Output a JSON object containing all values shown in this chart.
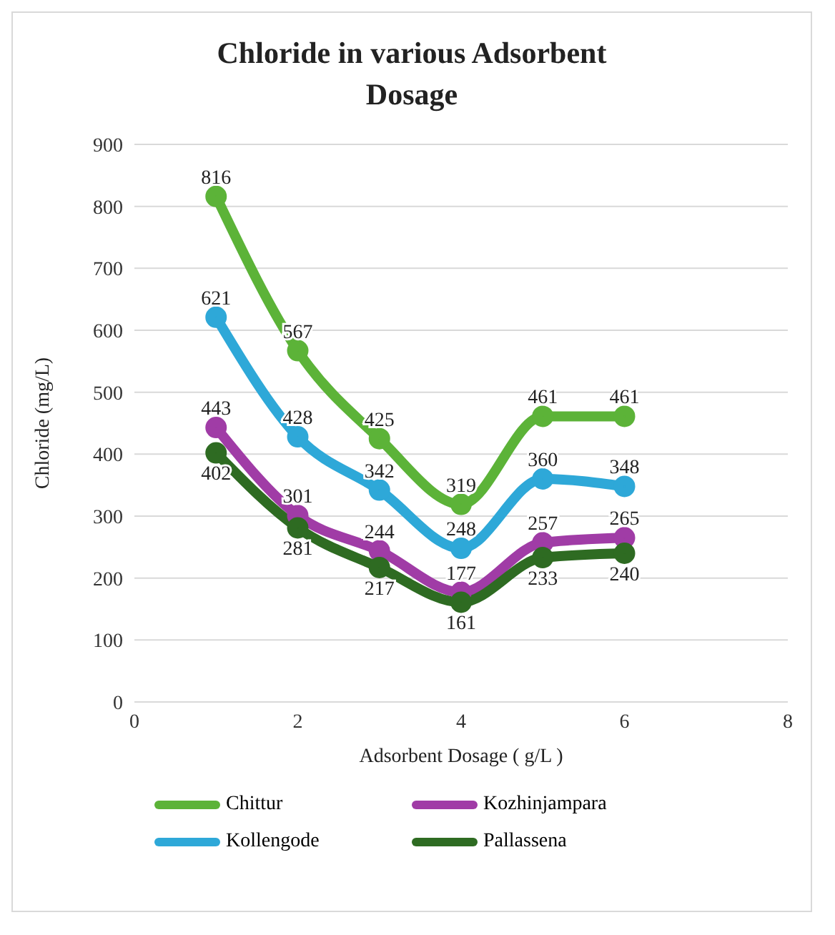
{
  "chart_data": {
    "type": "line",
    "title": "Chloride in various Adsorbent Dosage",
    "xlabel": "Adsorbent Dosage ( g/L )",
    "ylabel": "Chloride (mg/L)",
    "x": [
      1,
      2,
      3,
      4,
      5,
      6
    ],
    "series": [
      {
        "name": "Chittur",
        "color": "#5cb338",
        "values": [
          816,
          567,
          425,
          319,
          461,
          461
        ]
      },
      {
        "name": "Kozhinjampara",
        "color": "#a03ca6",
        "values": [
          443,
          301,
          244,
          177,
          257,
          265
        ]
      },
      {
        "name": "Kollengode",
        "color": "#2ea8d8",
        "values": [
          621,
          428,
          342,
          248,
          360,
          348
        ]
      },
      {
        "name": "Pallassena",
        "color": "#2e6b22",
        "values": [
          402,
          281,
          217,
          161,
          233,
          240
        ]
      }
    ],
    "xlim": [
      0,
      8
    ],
    "xticks": [
      0,
      2,
      4,
      6,
      8
    ],
    "ylim": [
      0,
      900
    ],
    "yticks": [
      0,
      100,
      200,
      300,
      400,
      500,
      600,
      700,
      800,
      900
    ],
    "grid": "y",
    "legend": "bottom",
    "marker": "circle",
    "line_style": "solid",
    "data_labels": true
  }
}
